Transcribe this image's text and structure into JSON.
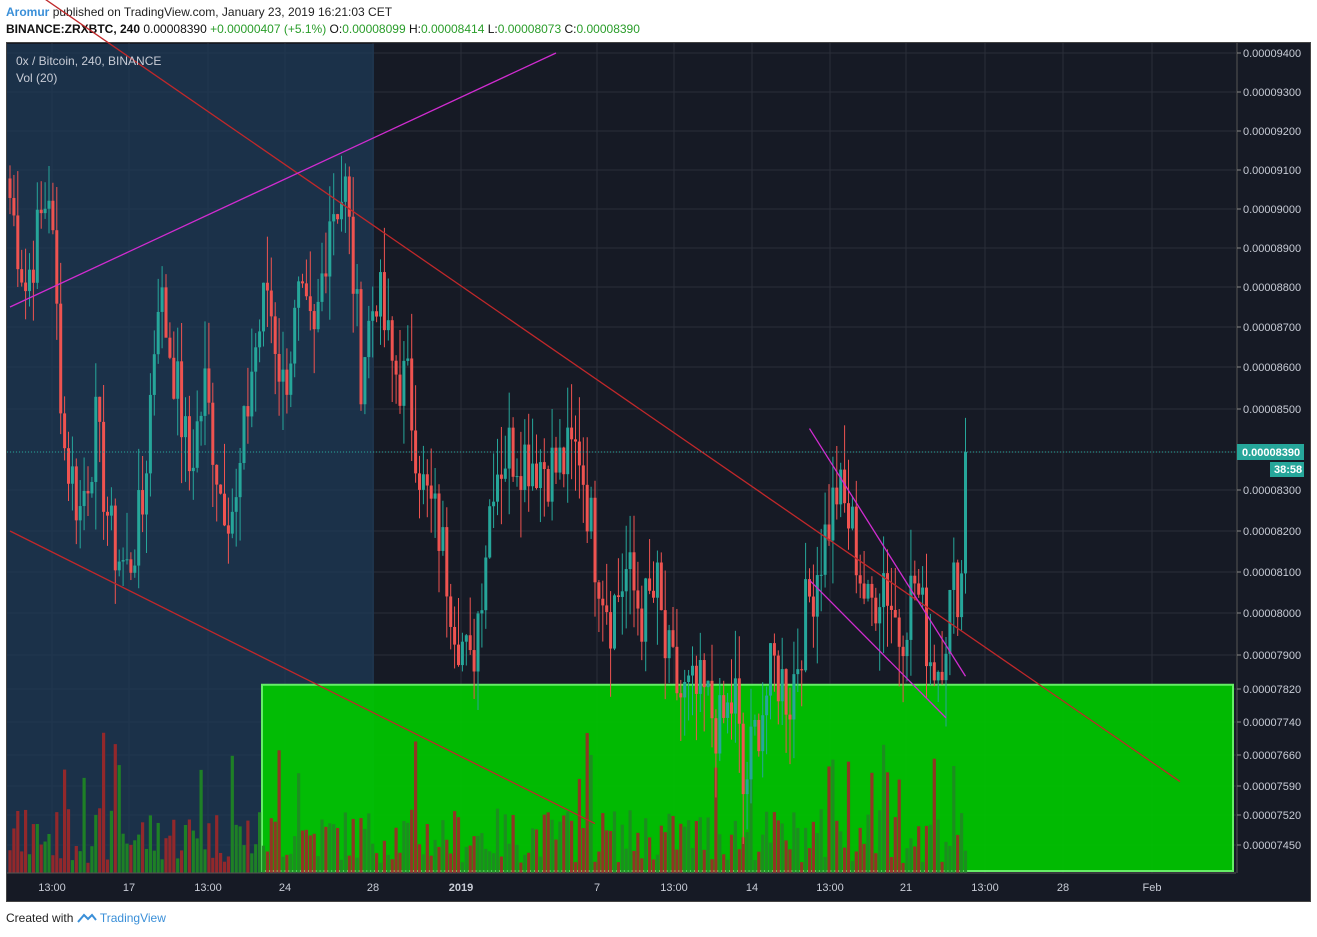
{
  "header": {
    "author": "Aromur",
    "published_text": "published on TradingView.com, January 23, 2019 16:21:03 CET",
    "symbol": "BINANCE:ZRXBTC, 240",
    "last": "0.00008390",
    "change": "+0.00000407 (+5.1%)",
    "o_label": "O:",
    "o_value": "0.00008099",
    "h_label": "H:",
    "h_value": "0.00008414",
    "l_label": "L:",
    "l_value": "0.00008073",
    "c_label": "C:",
    "c_value": "0.00008390"
  },
  "legend": {
    "title": "0x / Bitcoin, 240, BINANCE",
    "volume": "Vol (20)"
  },
  "footer": {
    "created_with": "Created with",
    "brand": "TradingView"
  },
  "colors": {
    "background": "#161a25",
    "grid": "#2a2e39",
    "up": "#26a69a",
    "down": "#ef5350",
    "vol_up": "#1f8a22",
    "vol_down": "#a02828",
    "zone": "#00c800",
    "trend_red": "#c0282a",
    "trend_magenta": "#d02cd0",
    "highlight": "#1e3a55",
    "price_tag": "#26a69a"
  },
  "chart_data": {
    "type": "candlestick",
    "y_ticks": [
      "0.00009400",
      "0.00009300",
      "0.00009200",
      "0.00009100",
      "0.00009000",
      "0.00008900",
      "0.00008800",
      "0.00008700",
      "0.00008600",
      "0.00008500",
      "0.00008390",
      "0.00008300",
      "0.00008200",
      "0.00008100",
      "0.00008000",
      "0.00007900",
      "0.00007820",
      "0.00007740",
      "0.00007660",
      "0.00007590",
      "0.00007520",
      "0.00007450"
    ],
    "x_ticks": [
      "13:00",
      "17",
      "13:00",
      "24",
      "28",
      "2019",
      "7",
      "13:00",
      "14",
      "13:00",
      "21",
      "13:00",
      "28",
      "Feb"
    ],
    "last_price_label": "0.00008390",
    "countdown": "38:58",
    "anchors": [
      [
        0,
        9.03e-05
      ],
      [
        4,
        8.8e-05
      ],
      [
        10,
        9.06e-05
      ],
      [
        14,
        8.4e-05
      ],
      [
        18,
        8.25e-05
      ],
      [
        22,
        8.45e-05
      ],
      [
        26,
        8.18e-05
      ],
      [
        30,
        8.1e-05
      ],
      [
        34,
        8.25e-05
      ],
      [
        38,
        8.8e-05
      ],
      [
        42,
        8.6e-05
      ],
      [
        46,
        8.35e-05
      ],
      [
        50,
        8.55e-05
      ],
      [
        54,
        8.3e-05
      ],
      [
        58,
        8.25e-05
      ],
      [
        62,
        8.6e-05
      ],
      [
        66,
        8.8e-05
      ],
      [
        70,
        8.55e-05
      ],
      [
        74,
        8.75e-05
      ],
      [
        78,
        8.65e-05
      ],
      [
        82,
        9e-05
      ],
      [
        86,
        9.05e-05
      ],
      [
        90,
        8.6e-05
      ],
      [
        94,
        8.8e-05
      ],
      [
        98,
        8.6e-05
      ],
      [
        102,
        8.55e-05
      ],
      [
        106,
        8.3e-05
      ],
      [
        110,
        8.2e-05
      ],
      [
        114,
        8e-05
      ],
      [
        118,
        7.85e-05
      ],
      [
        120,
        8e-05
      ],
      [
        124,
        8.35e-05
      ],
      [
        128,
        8.4e-05
      ],
      [
        134,
        8.38e-05
      ],
      [
        140,
        8.35e-05
      ],
      [
        146,
        8.4e-05
      ],
      [
        150,
        8.15e-05
      ],
      [
        154,
        8e-05
      ],
      [
        158,
        8.1e-05
      ],
      [
        162,
        8e-05
      ],
      [
        166,
        8.05e-05
      ],
      [
        168,
        7.9e-05
      ],
      [
        172,
        7.8e-05
      ],
      [
        178,
        7.8e-05
      ],
      [
        182,
        7.72e-05
      ],
      [
        186,
        7.8e-05
      ],
      [
        188,
        7.57e-05
      ],
      [
        192,
        7.75e-05
      ],
      [
        196,
        7.87e-05
      ],
      [
        200,
        7.8e-05
      ],
      [
        204,
        8e-05
      ],
      [
        208,
        8.15e-05
      ],
      [
        212,
        8.3e-05
      ],
      [
        216,
        8.2e-05
      ],
      [
        220,
        8e-05
      ],
      [
        224,
        8.1e-05
      ],
      [
        228,
        7.95e-05
      ],
      [
        232,
        8.08e-05
      ],
      [
        236,
        7.9e-05
      ],
      [
        238,
        7.88e-05
      ],
      [
        242,
        8.06e-05
      ],
      [
        244,
        8.09e-05
      ],
      [
        245,
        8.39e-05
      ]
    ],
    "volume_range": [
      0,
      1
    ],
    "support_zone": [
      7.45e-05,
      7.83e-05
    ],
    "trend_lines": [
      {
        "name": "descending-resistance",
        "color": "red",
        "from": [
          0,
          9.6e-05
        ],
        "to": [
          300,
          7.6e-05
        ]
      },
      {
        "name": "lower-channel",
        "color": "red",
        "from": [
          0,
          8.2e-05
        ],
        "to": [
          150,
          7.5e-05
        ]
      },
      {
        "name": "ascending-line",
        "color": "magenta",
        "from": [
          0,
          8.75e-05
        ],
        "to": [
          140,
          9.4e-05
        ]
      },
      {
        "name": "wedge-top",
        "color": "magenta",
        "from": [
          205,
          8.45e-05
        ],
        "to": [
          245,
          7.85e-05
        ]
      },
      {
        "name": "wedge-bottom",
        "color": "magenta",
        "from": [
          205,
          8.08e-05
        ],
        "to": [
          240,
          7.75e-05
        ]
      }
    ]
  }
}
